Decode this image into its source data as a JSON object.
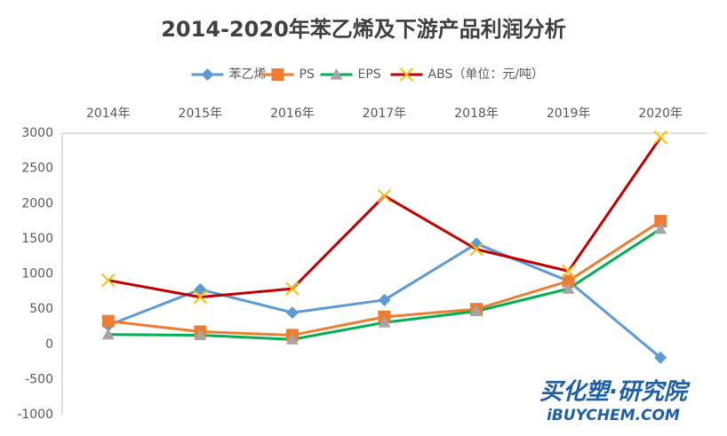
{
  "chart_data": {
    "type": "line",
    "title": "2014-2020年苯乙烯及下游产品利润分析",
    "categories": [
      "2014年",
      "2015年",
      "2016年",
      "2017年",
      "2018年",
      "2019年",
      "2020年"
    ],
    "series": [
      {
        "name": "苯乙烯",
        "color": "#5b9bd5",
        "marker": "diamond",
        "marker_color": "#5b9bd5",
        "values": [
          270,
          780,
          450,
          630,
          1430,
          900,
          -190
        ]
      },
      {
        "name": "PS",
        "color": "#ed7d31",
        "marker": "square",
        "marker_color": "#ed7d31",
        "values": [
          330,
          180,
          130,
          390,
          500,
          900,
          1750
        ]
      },
      {
        "name": "EPS",
        "color": "#00b050",
        "marker": "triangle",
        "marker_color": "#a5a5a5",
        "values": [
          140,
          130,
          70,
          310,
          470,
          790,
          1640
        ]
      },
      {
        "name": "ABS（单位：元/吨）",
        "color": "#c00000",
        "marker": "x",
        "marker_color": "#ffc000",
        "values": [
          910,
          670,
          790,
          2110,
          1350,
          1040,
          2940
        ]
      }
    ],
    "ylim": [
      -1000,
      3000
    ],
    "yticks": [
      -1000,
      -500,
      0,
      500,
      1000,
      1500,
      2000,
      2500,
      3000
    ],
    "watermark": [
      "买化塑·研究院",
      "iBUYCHEM.COM"
    ]
  }
}
